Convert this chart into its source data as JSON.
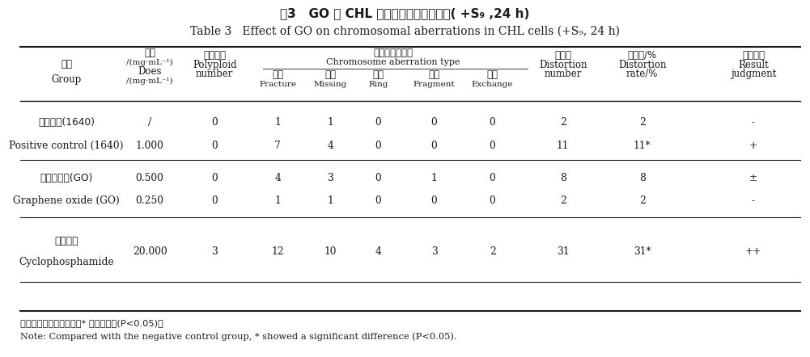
{
  "title_cn": "袅3   GO 对 CHL 细胞染色体型变的影响( +S₉ ,24 h)",
  "title_en": "Table 3   Effect of GO on chromosomal aberrations in CHL cells (+S₉, 24 h)",
  "note_cn": "注：与阴性对照组比较，* 为差异显著(P<0.05)。",
  "note_en": "Note: Compared with the negative control group, * showed a significant difference (P<0.05).",
  "rows": [
    {
      "group_cn": "阴性对照(1640)",
      "group_en": "",
      "dose": "/",
      "polyploid": "0",
      "fracture": "1",
      "missing": "1",
      "ring": "0",
      "fragment": "0",
      "exchange": "0",
      "distortion_num": "2",
      "distortion_rate": "2",
      "result": "-"
    },
    {
      "group_cn": "Positive control (1640)",
      "group_en": "",
      "dose": "1.000",
      "polyploid": "0",
      "fracture": "7",
      "missing": "4",
      "ring": "0",
      "fragment": "0",
      "exchange": "0",
      "distortion_num": "11",
      "distortion_rate": "11*",
      "result": "+"
    },
    {
      "group_cn": "氧化石墨烯(GO)",
      "group_en": "",
      "dose": "0.500",
      "polyploid": "0",
      "fracture": "4",
      "missing": "3",
      "ring": "0",
      "fragment": "1",
      "exchange": "0",
      "distortion_num": "8",
      "distortion_rate": "8",
      "result": "±"
    },
    {
      "group_cn": "Graphene oxide (GO)",
      "group_en": "",
      "dose": "0.250",
      "polyploid": "0",
      "fracture": "1",
      "missing": "1",
      "ring": "0",
      "fragment": "0",
      "exchange": "0",
      "distortion_num": "2",
      "distortion_rate": "2",
      "result": "-"
    },
    {
      "group_cn": "环磷酰胺",
      "group_en": "Cyclophosphamide",
      "dose": "20.000",
      "polyploid": "3",
      "fracture": "12",
      "missing": "10",
      "ring": "4",
      "fragment": "3",
      "exchange": "2",
      "distortion_num": "31",
      "distortion_rate": "31*",
      "result": "++"
    }
  ]
}
